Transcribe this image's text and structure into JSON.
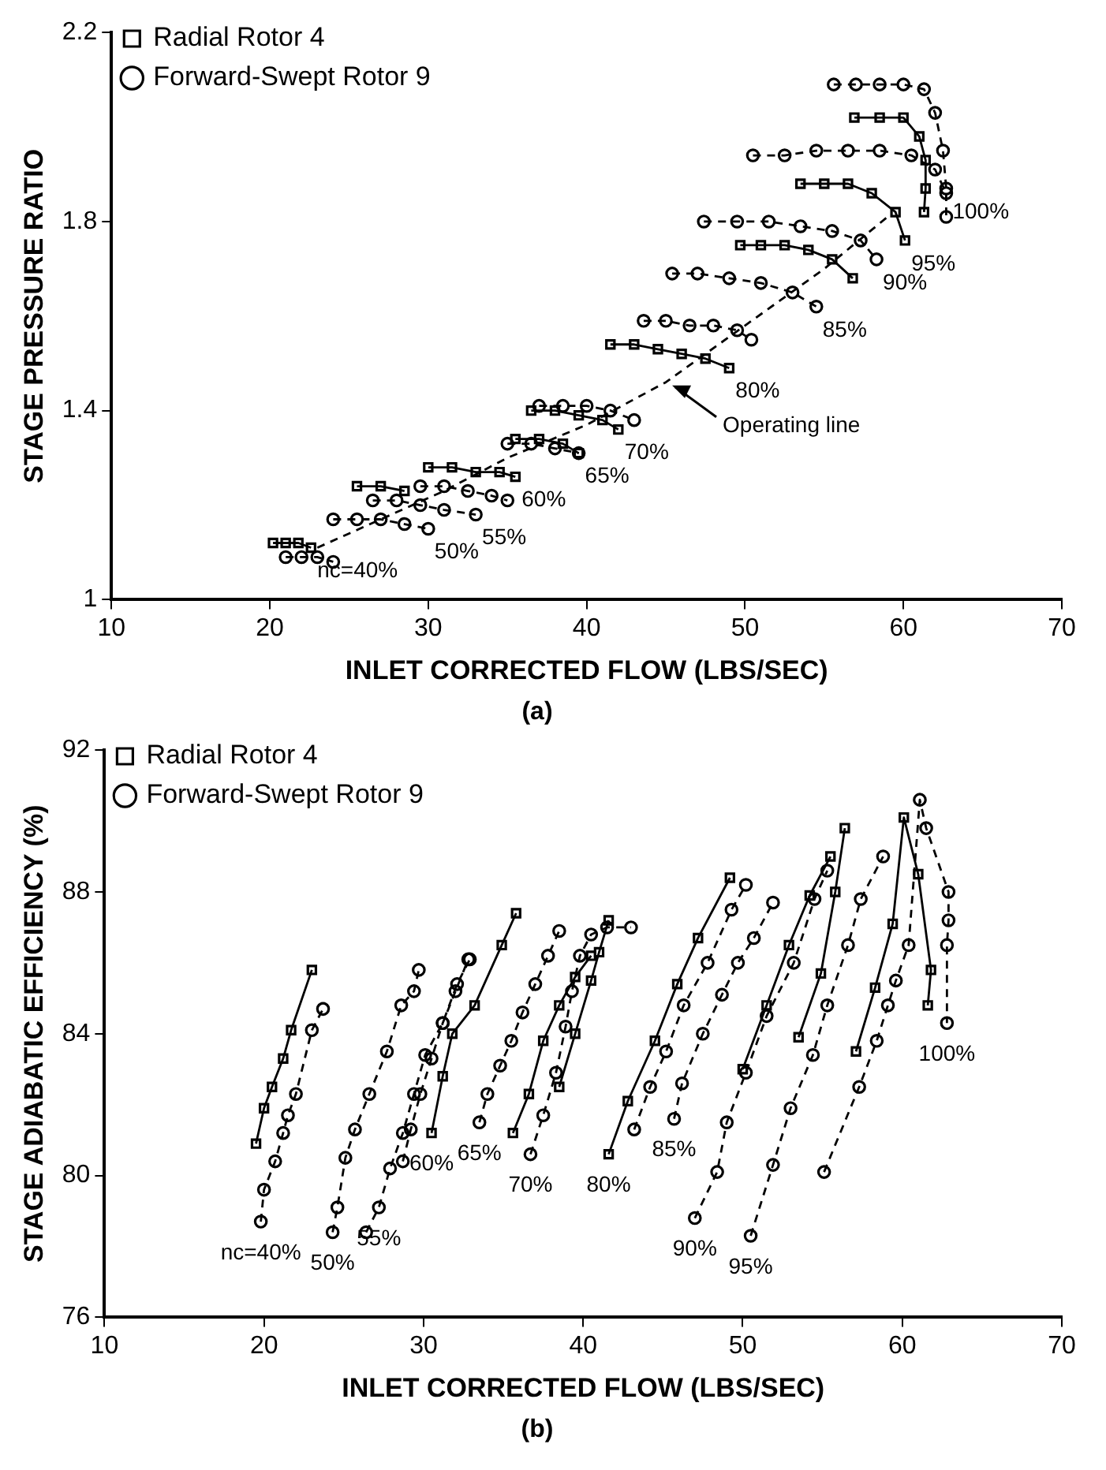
{
  "chart_data": [
    {
      "type": "line",
      "title": "(a)",
      "xlabel": "INLET CORRECTED FLOW (LBS/SEC)",
      "ylabel": "STAGE PRESSURE RATIO",
      "xlim": [
        10,
        70
      ],
      "xticks": [
        10,
        20,
        30,
        40,
        50,
        60,
        70
      ],
      "ylim": [
        1,
        2.2
      ],
      "yticks": [
        1,
        1.4,
        1.8,
        2.2
      ],
      "grid": false,
      "legend": "top left",
      "series": [
        {
          "name": "Radial Rotor 4",
          "color": "#000000",
          "marker": "square",
          "line_style": "solid",
          "x": [
            20.2,
            21,
            21.8,
            22.6,
            null,
            25.5,
            27,
            28.5,
            null,
            30,
            31.5,
            33,
            34.5,
            35.5,
            null,
            35.5,
            37,
            38.5,
            39.5,
            null,
            36.5,
            38,
            39.5,
            41,
            42,
            null,
            41.5,
            43,
            44.5,
            46,
            47.5,
            49,
            null,
            49.7,
            51,
            52.5,
            54,
            55.5,
            56.8,
            null,
            53.5,
            55,
            56.5,
            58,
            59.5,
            60.1,
            null,
            56.9,
            58.5,
            60,
            61,
            61.4,
            61.4,
            61.3
          ],
          "values": [
            1.12,
            1.12,
            1.12,
            1.11,
            null,
            1.24,
            1.24,
            1.23,
            null,
            1.28,
            1.28,
            1.27,
            1.27,
            1.26,
            null,
            1.34,
            1.34,
            1.33,
            1.31,
            null,
            1.4,
            1.4,
            1.39,
            1.38,
            1.36,
            null,
            1.54,
            1.54,
            1.53,
            1.52,
            1.51,
            1.49,
            null,
            1.75,
            1.75,
            1.75,
            1.74,
            1.72,
            1.68,
            null,
            1.88,
            1.88,
            1.88,
            1.86,
            1.82,
            1.76,
            null,
            2.02,
            2.02,
            2.02,
            1.98,
            1.93,
            1.87,
            1.82
          ]
        },
        {
          "name": "Forward-Swept Rotor 9",
          "color": "#000000",
          "marker": "circle",
          "line_style": "dashed",
          "x": [
            21,
            22,
            23,
            24,
            null,
            24,
            25.5,
            27,
            28.5,
            30,
            null,
            26.5,
            28,
            29.5,
            31,
            33,
            null,
            29.5,
            31,
            32.5,
            34,
            35,
            null,
            35,
            36.5,
            38,
            39.5,
            null,
            37,
            38.5,
            40,
            41.5,
            43,
            null,
            43.6,
            45,
            46.5,
            48,
            49.5,
            50.4,
            null,
            45.4,
            47,
            49,
            51,
            53,
            54.5,
            null,
            47.4,
            49.5,
            51.5,
            53.5,
            55.5,
            57.3,
            58.3,
            null,
            50.5,
            52.5,
            54.5,
            56.5,
            58.5,
            60.5,
            62,
            62.7,
            62.7,
            null,
            55.6,
            57,
            58.5,
            60,
            61.3,
            62,
            62.5,
            62.7
          ],
          "values": [
            1.09,
            1.09,
            1.09,
            1.08,
            null,
            1.17,
            1.17,
            1.17,
            1.16,
            1.15,
            null,
            1.21,
            1.21,
            1.2,
            1.19,
            1.18,
            null,
            1.24,
            1.24,
            1.23,
            1.22,
            1.21,
            null,
            1.33,
            1.33,
            1.32,
            1.31,
            null,
            1.41,
            1.41,
            1.41,
            1.4,
            1.38,
            null,
            1.59,
            1.59,
            1.58,
            1.58,
            1.57,
            1.55,
            null,
            1.69,
            1.69,
            1.68,
            1.67,
            1.65,
            1.62,
            null,
            1.8,
            1.8,
            1.8,
            1.79,
            1.78,
            1.76,
            1.72,
            null,
            1.94,
            1.94,
            1.95,
            1.95,
            1.95,
            1.94,
            1.91,
            1.86,
            1.81,
            null,
            2.09,
            2.09,
            2.09,
            2.09,
            2.08,
            2.03,
            1.95,
            1.87
          ]
        },
        {
          "type": "line",
          "color": "#000000",
          "marker": "none",
          "line_style": "dashed",
          "x": [
            23,
            27,
            31,
            35,
            40,
            45,
            50,
            55,
            59
          ],
          "values": [
            1.11,
            1.17,
            1.23,
            1.3,
            1.37,
            1.46,
            1.58,
            1.7,
            1.81
          ]
        }
      ],
      "annotations": [
        {
          "text": "nc=40%",
          "x": 22.6,
          "y": 1.11
        },
        {
          "text": "50%",
          "x": 30,
          "y": 1.15
        },
        {
          "text": "55%",
          "x": 33,
          "y": 1.18
        },
        {
          "text": "60%",
          "x": 35.5,
          "y": 1.26
        },
        {
          "text": "65%",
          "x": 39.5,
          "y": 1.31
        },
        {
          "text": "70%",
          "x": 42,
          "y": 1.36
        },
        {
          "text": "80%",
          "x": 49,
          "y": 1.49
        },
        {
          "text": "85%",
          "x": 54.5,
          "y": 1.62
        },
        {
          "text": "90%",
          "x": 58.3,
          "y": 1.72
        },
        {
          "text": "95%",
          "x": 60.1,
          "y": 1.76
        },
        {
          "text": "100%",
          "x": 62.7,
          "y": 1.87
        },
        {
          "text": "Operating line",
          "x": 45,
          "y": 1.46
        }
      ]
    },
    {
      "type": "line",
      "title": "(b)",
      "xlabel": "INLET CORRECTED FLOW (LBS/SEC)",
      "ylabel": "STAGE ADIABATIC EFFICIENCY (%)",
      "xlim": [
        10,
        70
      ],
      "xticks": [
        10,
        20,
        30,
        40,
        50,
        60,
        70
      ],
      "ylim": [
        76,
        92
      ],
      "yticks": [
        76,
        80,
        84,
        88,
        92
      ],
      "grid": false,
      "legend": "top left",
      "series": [
        {
          "name": "Radial Rotor 4",
          "color": "#000000",
          "marker": "square",
          "line_style": "solid",
          "x": [
            19.5,
            20,
            20.5,
            21.2,
            21.7,
            23,
            null,
            30.5,
            31.2,
            31.8,
            33.2,
            34.9,
            35.8,
            null,
            35.6,
            36.6,
            37.5,
            38.5,
            39.5,
            40.5,
            null,
            38.5,
            39.5,
            40.5,
            41,
            41.6,
            null,
            41.6,
            42.8,
            44.5,
            45.9,
            47.2,
            49.2,
            null,
            50,
            51.5,
            52.9,
            54.2,
            55.5,
            null,
            53.5,
            54.9,
            55.8,
            56.4,
            null,
            57.1,
            58.3,
            59.4,
            60.1,
            61,
            61.8,
            61.6
          ],
          "values": [
            80.9,
            81.9,
            82.5,
            83.3,
            84.1,
            85.8,
            null,
            81.2,
            82.8,
            84.0,
            84.8,
            86.5,
            87.4,
            null,
            81.2,
            82.3,
            83.8,
            84.8,
            85.6,
            86.2,
            null,
            82.5,
            84,
            85.5,
            86.3,
            87.2,
            null,
            80.6,
            82.1,
            83.8,
            85.4,
            86.7,
            88.4,
            null,
            83.0,
            84.8,
            86.5,
            87.9,
            89.0,
            null,
            83.9,
            85.7,
            88.0,
            89.8,
            null,
            83.5,
            85.3,
            87.1,
            90.1,
            88.5,
            85.8,
            84.8
          ]
        },
        {
          "name": "Forward-Swept Rotor 9",
          "color": "#000000",
          "marker": "circle",
          "line_style": "dashed",
          "x": [
            19.8,
            20,
            20.7,
            21.2,
            21.5,
            22,
            23,
            23.7,
            null,
            24.3,
            24.6,
            25.1,
            25.7,
            26.6,
            27.7,
            28.6,
            29.4,
            29.7,
            null,
            26.4,
            27.2,
            27.9,
            28.7,
            29.4,
            30.1,
            31.2,
            32.1,
            32.9,
            null,
            28.7,
            29.2,
            29.8,
            30.5,
            31.2,
            32,
            32.8,
            null,
            33.5,
            34,
            34.8,
            35.5,
            36.2,
            37,
            37.8,
            38.5,
            null,
            36.7,
            37.5,
            38.3,
            38.9,
            39.3,
            39.8,
            40.5,
            41.5,
            43,
            null,
            43.2,
            44.2,
            45.2,
            46.3,
            47.8,
            49.3,
            50.2,
            null,
            45.7,
            46.2,
            47.5,
            48.7,
            49.7,
            50.7,
            51.9,
            null,
            47,
            48.4,
            49,
            50.2,
            51.5,
            53.2,
            54.5,
            55.3,
            null,
            50.5,
            51.9,
            53,
            54.4,
            55.3,
            56.6,
            57.4,
            58.8,
            null,
            55.1,
            57.3,
            58.4,
            59.1,
            59.6,
            60.4,
            61.1,
            61.5,
            62.9,
            62.9,
            62.8,
            62.8
          ],
          "values": [
            78.7,
            79.6,
            80.4,
            81.2,
            81.7,
            82.3,
            84.1,
            84.7,
            null,
            78.4,
            79.1,
            80.5,
            81.3,
            82.3,
            83.5,
            84.8,
            85.2,
            85.8,
            null,
            78.4,
            79.1,
            80.2,
            81.2,
            82.3,
            83.4,
            84.3,
            85.4,
            86.1,
            null,
            80.4,
            81.3,
            82.3,
            83.3,
            84.3,
            85.2,
            86.1,
            null,
            81.5,
            82.3,
            83.1,
            83.8,
            84.6,
            85.4,
            86.2,
            86.9,
            null,
            80.6,
            81.7,
            82.9,
            84.2,
            85.2,
            86.2,
            86.8,
            87.0,
            87.0,
            null,
            81.3,
            82.5,
            83.5,
            84.8,
            86,
            87.5,
            88.2,
            null,
            81.6,
            82.6,
            84,
            85.1,
            86,
            86.7,
            87.7,
            null,
            78.8,
            80.1,
            81.5,
            82.9,
            84.5,
            86.0,
            87.8,
            88.6,
            null,
            78.3,
            80.3,
            81.9,
            83.4,
            84.8,
            86.5,
            87.8,
            89.0,
            null,
            80.1,
            82.5,
            83.8,
            84.8,
            85.5,
            86.5,
            90.6,
            89.8,
            88.0,
            87.2,
            86.5,
            84.3
          ]
        }
      ],
      "annotations": [
        {
          "text": "nc=40%",
          "x": 19.8,
          "y": 78.7
        },
        {
          "text": "50%",
          "x": 24.3,
          "y": 78.4
        },
        {
          "text": "55%",
          "x": 27.2,
          "y": 79.1
        },
        {
          "text": "60%",
          "x": 30.5,
          "y": 81.2
        },
        {
          "text": "65%",
          "x": 33.5,
          "y": 81.5
        },
        {
          "text": "70%",
          "x": 36.7,
          "y": 80.6
        },
        {
          "text": "80%",
          "x": 41.6,
          "y": 80.6
        },
        {
          "text": "85%",
          "x": 45.7,
          "y": 81.6
        },
        {
          "text": "90%",
          "x": 47,
          "y": 78.8
        },
        {
          "text": "95%",
          "x": 50.5,
          "y": 78.3
        },
        {
          "text": "100%",
          "x": 62.8,
          "y": 84.3
        }
      ]
    }
  ]
}
